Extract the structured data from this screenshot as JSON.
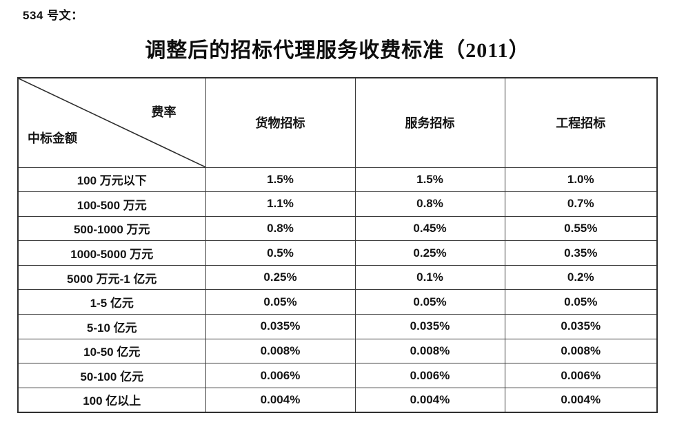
{
  "page": {
    "doc_ref": "534 号文：",
    "title": "调整后的招标代理服务收费标准（2011）"
  },
  "table": {
    "corner": {
      "top_right_label": "费率",
      "bottom_left_label": "中标金额"
    },
    "columns": [
      "货物招标",
      "服务招标",
      "工程招标"
    ],
    "rows": [
      {
        "amount": "100 万元以下",
        "goods": "1.5%",
        "services": "1.5%",
        "works": "1.0%"
      },
      {
        "amount": "100-500 万元",
        "goods": "1.1%",
        "services": "0.8%",
        "works": "0.7%"
      },
      {
        "amount": "500-1000 万元",
        "goods": "0.8%",
        "services": "0.45%",
        "works": "0.55%"
      },
      {
        "amount": "1000-5000 万元",
        "goods": "0.5%",
        "services": "0.25%",
        "works": "0.35%"
      },
      {
        "amount": "5000 万元-1 亿元",
        "goods": "0.25%",
        "services": "0.1%",
        "works": "0.2%"
      },
      {
        "amount": "1-5 亿元",
        "goods": "0.05%",
        "services": "0.05%",
        "works": "0.05%"
      },
      {
        "amount": "5-10 亿元",
        "goods": "0.035%",
        "services": "0.035%",
        "works": "0.035%"
      },
      {
        "amount": "10-50 亿元",
        "goods": "0.008%",
        "services": "0.008%",
        "works": "0.008%"
      },
      {
        "amount": "50-100 亿元",
        "goods": "0.006%",
        "services": "0.006%",
        "works": "0.006%"
      },
      {
        "amount": "100 亿以上",
        "goods": "0.004%",
        "services": "0.004%",
        "works": "0.004%"
      }
    ]
  }
}
